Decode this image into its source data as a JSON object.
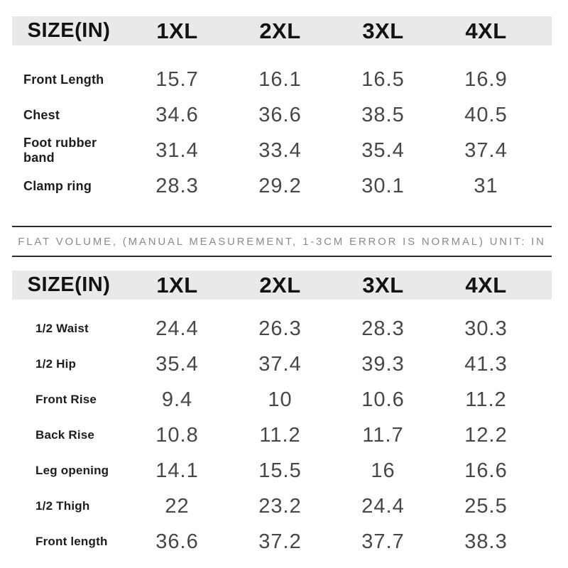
{
  "colors": {
    "background": "#ffffff",
    "header_band_bg": "#e9e9e9",
    "header_text": "#121212",
    "label_text": "#1d1d1d",
    "value_text": "#474747",
    "note_text": "#8a8a8a",
    "divider": "#2b2b2b"
  },
  "table1": {
    "header": {
      "size_label": "SIZE(IN)",
      "columns": [
        "1XL",
        "2XL",
        "3XL",
        "4XL"
      ]
    },
    "rows": [
      {
        "label": "Front Length",
        "values": [
          "15.7",
          "16.1",
          "16.5",
          "16.9"
        ]
      },
      {
        "label": "Chest",
        "values": [
          "34.6",
          "36.6",
          "38.5",
          "40.5"
        ]
      },
      {
        "label": "Foot rubber band",
        "values": [
          "31.4",
          "33.4",
          "35.4",
          "37.4"
        ]
      },
      {
        "label": "Clamp ring",
        "values": [
          "28.3",
          "29.2",
          "30.1",
          "31"
        ]
      }
    ]
  },
  "note": {
    "text": "FLAT VOLUME, (MANUAL MEASUREMENT, 1-3CM ERROR IS NORMAL) UNIT: IN"
  },
  "table2": {
    "header": {
      "size_label": "SIZE(IN)",
      "columns": [
        "1XL",
        "2XL",
        "3XL",
        "4XL"
      ]
    },
    "rows": [
      {
        "label": "1/2 Waist",
        "values": [
          "24.4",
          "26.3",
          "28.3",
          "30.3"
        ]
      },
      {
        "label": "1/2 Hip",
        "values": [
          "35.4",
          "37.4",
          "39.3",
          "41.3"
        ]
      },
      {
        "label": "Front Rise",
        "values": [
          "9.4",
          "10",
          "10.6",
          "11.2"
        ]
      },
      {
        "label": "Back Rise",
        "values": [
          "10.8",
          "11.2",
          "11.7",
          "12.2"
        ]
      },
      {
        "label": "Leg opening",
        "values": [
          "14.1",
          "15.5",
          "16",
          "16.6"
        ]
      },
      {
        "label": "1/2 Thigh",
        "values": [
          "22",
          "23.2",
          "24.4",
          "25.5"
        ]
      },
      {
        "label": "Front length",
        "values": [
          "36.6",
          "37.2",
          "37.7",
          "38.3"
        ]
      }
    ]
  },
  "chart_data": [
    {
      "type": "table",
      "title": "SIZE(IN) - upper garment measurements",
      "columns": [
        "SIZE(IN)",
        "1XL",
        "2XL",
        "3XL",
        "4XL"
      ],
      "rows": [
        [
          "Front Length",
          15.7,
          16.1,
          16.5,
          16.9
        ],
        [
          "Chest",
          34.6,
          36.6,
          38.5,
          40.5
        ],
        [
          "Foot rubber band",
          31.4,
          33.4,
          35.4,
          37.4
        ],
        [
          "Clamp ring",
          28.3,
          29.2,
          30.1,
          31
        ]
      ]
    },
    {
      "type": "table",
      "title": "SIZE(IN) - lower garment measurements",
      "note": "FLAT VOLUME, (MANUAL MEASUREMENT, 1-3CM ERROR IS NORMAL) UNIT: IN",
      "columns": [
        "SIZE(IN)",
        "1XL",
        "2XL",
        "3XL",
        "4XL"
      ],
      "rows": [
        [
          "1/2 Waist",
          24.4,
          26.3,
          28.3,
          30.3
        ],
        [
          "1/2 Hip",
          35.4,
          37.4,
          39.3,
          41.3
        ],
        [
          "Front Rise",
          9.4,
          10,
          10.6,
          11.2
        ],
        [
          "Back Rise",
          10.8,
          11.2,
          11.7,
          12.2
        ],
        [
          "Leg opening",
          14.1,
          15.5,
          16,
          16.6
        ],
        [
          "1/2 Thigh",
          22,
          23.2,
          24.4,
          25.5
        ],
        [
          "Front length",
          36.6,
          37.2,
          37.7,
          38.3
        ]
      ]
    }
  ]
}
